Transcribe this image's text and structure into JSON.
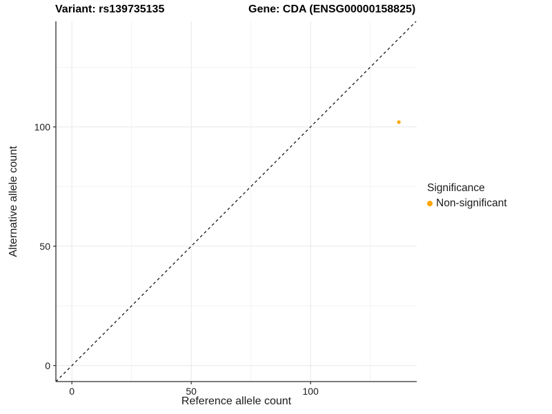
{
  "chart_data": {
    "type": "scatter",
    "title_left": "Variant: rs139735135",
    "title_right": "Gene: CDA (ENSG00000158825)",
    "xlabel": "Reference allele count",
    "ylabel": "Alternative allele count",
    "xlim": [
      -6.7,
      144.5
    ],
    "ylim": [
      -6.7,
      144.2
    ],
    "x_major_ticks": [
      0,
      50,
      100
    ],
    "y_major_ticks": [
      0,
      50,
      100
    ],
    "x_minor_ticks": [
      25,
      75,
      125
    ],
    "y_minor_ticks": [
      25,
      75,
      125
    ],
    "grid": true,
    "reference_line": {
      "type": "identity-diagonal",
      "style": "dashed",
      "color": "#000000"
    },
    "series": [
      {
        "name": "Non-significant",
        "color": "#FFA500",
        "points": [
          {
            "x": 137,
            "y": 102
          }
        ]
      }
    ],
    "legend": {
      "position": "right",
      "title": "Significance",
      "items": [
        {
          "label": "Non-significant",
          "color": "#FFA500"
        }
      ]
    }
  },
  "colors": {
    "background": "#ffffff",
    "grid_major": "#e7e7e7",
    "grid_minor": "#f3f3f3",
    "axis_line": "#2b2b2b",
    "tick_label": "#1a1a1a",
    "point": "#FFA500"
  }
}
